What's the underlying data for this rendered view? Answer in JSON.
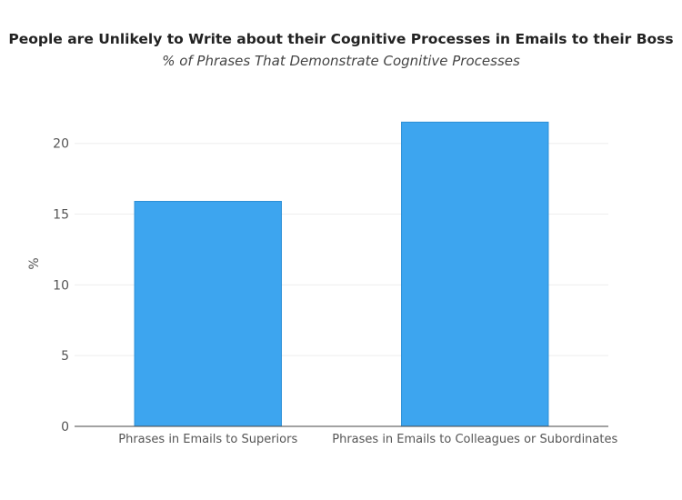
{
  "chart_data": {
    "type": "bar",
    "title": "People are Unlikely to Write about their Cognitive Processes in Emails to their Boss",
    "subtitle": "% of Phrases That Demonstrate Cognitive Processes",
    "categories": [
      "Phrases in Emails to Superiors",
      "Phrases in Emails to Colleagues or Subordinates"
    ],
    "series": [
      {
        "values": [
          15.9,
          21.5
        ]
      }
    ],
    "xlabel": "",
    "ylabel": "%",
    "ylim": [
      0,
      23
    ],
    "yticks": [
      0,
      5,
      10,
      15,
      20
    ],
    "grid": true,
    "colors": {
      "bar": "#3da5ef",
      "bar_border": "#2b8fd6",
      "grid": "#eeeeee",
      "axis": "#444444"
    }
  }
}
